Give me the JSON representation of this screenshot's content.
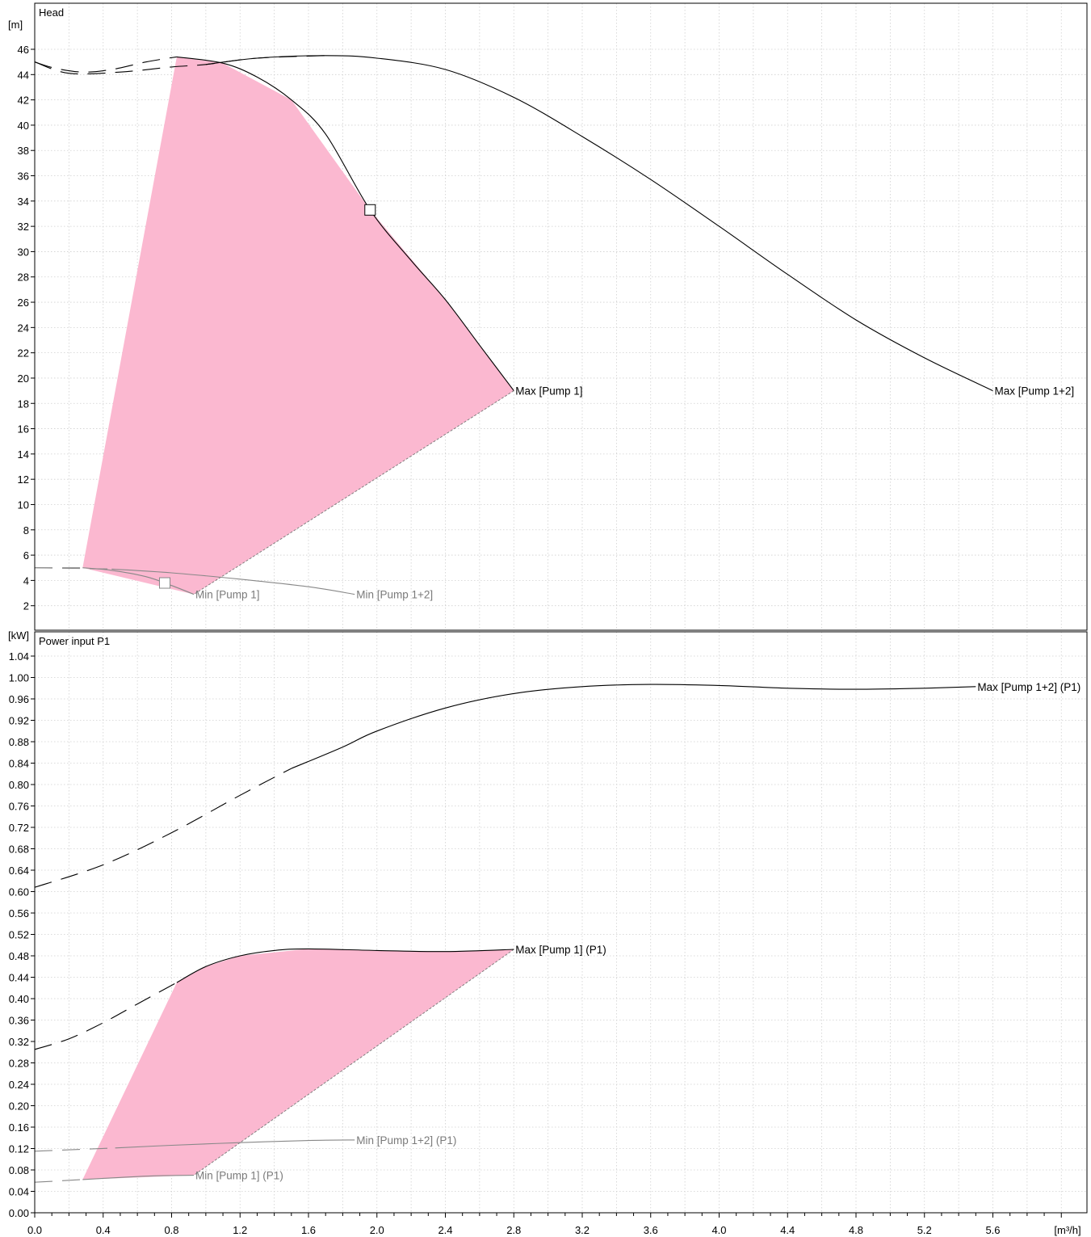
{
  "chart_data": [
    {
      "type": "line",
      "title": "Head",
      "ylabel": "[m]",
      "xlabel": "[m³/h]",
      "xlim": [
        0,
        6.0
      ],
      "ylim": [
        0,
        48
      ],
      "x_ticks": [
        "0.0",
        "0.4",
        "0.8",
        "1.2",
        "1.6",
        "2.0",
        "2.4",
        "2.8",
        "3.2",
        "3.6",
        "4.0",
        "4.4",
        "4.8",
        "5.2",
        "5.6"
      ],
      "y_ticks": [
        "2",
        "4",
        "6",
        "8",
        "10",
        "12",
        "14",
        "16",
        "18",
        "20",
        "22",
        "24",
        "26",
        "28",
        "30",
        "32",
        "34",
        "36",
        "38",
        "40",
        "42",
        "44",
        "46"
      ],
      "grid": true,
      "operating_area_color": "#fbb8d0",
      "operating_area": [
        [
          0.28,
          5.0
        ],
        [
          0.83,
          45.4
        ],
        [
          1.1,
          44.9
        ],
        [
          1.5,
          42.0
        ],
        [
          1.96,
          33.3
        ],
        [
          2.4,
          26.2
        ],
        [
          2.8,
          19.0
        ],
        [
          0.93,
          2.9
        ]
      ],
      "series": [
        {
          "name": "Max [Pump 1]",
          "color": "#000000",
          "dashed": [
            [
              0.0,
              45.0
            ],
            [
              0.12,
              44.5
            ],
            [
              0.28,
              44.2
            ],
            [
              0.45,
              44.4
            ],
            [
              0.65,
              45.0
            ],
            [
              0.83,
              45.4
            ]
          ],
          "solid": [
            [
              0.83,
              45.4
            ],
            [
              1.1,
              44.9
            ],
            [
              1.3,
              43.8
            ],
            [
              1.5,
              42.0
            ],
            [
              1.7,
              39.3
            ],
            [
              1.96,
              33.3
            ],
            [
              2.2,
              29.3
            ],
            [
              2.4,
              26.2
            ],
            [
              2.6,
              22.6
            ],
            [
              2.8,
              19.0
            ]
          ]
        },
        {
          "name": "Max [Pump 1+2]",
          "color": "#000000",
          "dashed": [
            [
              0.0,
              45.0
            ],
            [
              0.2,
              44.1
            ],
            [
              0.5,
              44.2
            ],
            [
              0.8,
              44.6
            ],
            [
              1.0,
              44.8
            ],
            [
              1.3,
              45.3
            ],
            [
              1.7,
              45.5
            ]
          ],
          "solid": [
            [
              1.0,
              44.8
            ],
            [
              1.3,
              45.3
            ],
            [
              1.7,
              45.5
            ],
            [
              2.0,
              45.3
            ],
            [
              2.4,
              44.4
            ],
            [
              2.8,
              42.2
            ],
            [
              3.2,
              39.1
            ],
            [
              3.6,
              35.7
            ],
            [
              4.0,
              32.0
            ],
            [
              4.4,
              28.2
            ],
            [
              4.8,
              24.6
            ],
            [
              5.2,
              21.6
            ],
            [
              5.6,
              19.0
            ]
          ]
        },
        {
          "name": "Min [Pump 1]",
          "color": "#888888",
          "dashed": [
            [
              0.0,
              5.0
            ],
            [
              0.28,
              5.0
            ]
          ],
          "solid": [
            [
              0.28,
              5.0
            ],
            [
              0.45,
              4.8
            ],
            [
              0.65,
              4.3
            ],
            [
              0.8,
              3.6
            ],
            [
              0.93,
              2.9
            ]
          ]
        },
        {
          "name": "Min [Pump 1+2]",
          "color": "#888888",
          "dashed": [
            [
              0.0,
              5.0
            ],
            [
              0.45,
              4.9
            ]
          ],
          "solid": [
            [
              0.45,
              4.9
            ],
            [
              0.8,
              4.6
            ],
            [
              1.2,
              4.1
            ],
            [
              1.6,
              3.5
            ],
            [
              1.87,
              2.9
            ]
          ]
        }
      ],
      "markers": [
        {
          "x": 1.96,
          "y": 33.3,
          "color": "#000000"
        },
        {
          "x": 0.76,
          "y": 3.8,
          "color": "#888888"
        }
      ]
    },
    {
      "type": "line",
      "title": "Power input P1",
      "ylabel": "[kW]",
      "xlabel": "[m³/h]",
      "xlim": [
        0,
        6.0
      ],
      "ylim": [
        0,
        1.08
      ],
      "x_ticks": [
        "0.0",
        "0.4",
        "0.8",
        "1.2",
        "1.6",
        "2.0",
        "2.4",
        "2.8",
        "3.2",
        "3.6",
        "4.0",
        "4.4",
        "4.8",
        "5.2",
        "5.6"
      ],
      "y_ticks": [
        "0.00",
        "0.04",
        "0.08",
        "0.12",
        "0.16",
        "0.20",
        "0.24",
        "0.28",
        "0.32",
        "0.36",
        "0.40",
        "0.44",
        "0.48",
        "0.52",
        "0.56",
        "0.60",
        "0.64",
        "0.68",
        "0.72",
        "0.76",
        "0.80",
        "0.84",
        "0.88",
        "0.92",
        "0.96",
        "1.00",
        "1.04"
      ],
      "grid": true,
      "operating_area_color": "#fbb8d0",
      "operating_area": [
        [
          0.28,
          0.062
        ],
        [
          0.83,
          0.43
        ],
        [
          1.0,
          0.46
        ],
        [
          1.2,
          0.48
        ],
        [
          1.6,
          0.493
        ],
        [
          2.0,
          0.49
        ],
        [
          2.4,
          0.488
        ],
        [
          2.8,
          0.492
        ],
        [
          0.93,
          0.07
        ]
      ],
      "series": [
        {
          "name": "Max [Pump 1] (P1)",
          "color": "#000000",
          "dashed": [
            [
              0.0,
              0.305
            ],
            [
              0.2,
              0.325
            ],
            [
              0.4,
              0.355
            ],
            [
              0.6,
              0.39
            ],
            [
              0.83,
              0.43
            ]
          ],
          "solid": [
            [
              0.83,
              0.43
            ],
            [
              1.0,
              0.46
            ],
            [
              1.2,
              0.48
            ],
            [
              1.4,
              0.49
            ],
            [
              1.6,
              0.493
            ],
            [
              2.0,
              0.49
            ],
            [
              2.4,
              0.488
            ],
            [
              2.8,
              0.492
            ]
          ]
        },
        {
          "name": "Max [Pump 1+2] (P1)",
          "color": "#000000",
          "dashed": [
            [
              0.0,
              0.608
            ],
            [
              0.4,
              0.65
            ],
            [
              0.8,
              0.71
            ],
            [
              1.2,
              0.78
            ],
            [
              1.5,
              0.83
            ]
          ],
          "solid": [
            [
              1.5,
              0.83
            ],
            [
              1.8,
              0.87
            ],
            [
              2.0,
              0.9
            ],
            [
              2.4,
              0.943
            ],
            [
              2.8,
              0.97
            ],
            [
              3.2,
              0.983
            ],
            [
              3.6,
              0.987
            ],
            [
              4.0,
              0.985
            ],
            [
              4.4,
              0.98
            ],
            [
              4.8,
              0.978
            ],
            [
              5.2,
              0.98
            ],
            [
              5.5,
              0.983
            ]
          ]
        },
        {
          "name": "Min [Pump 1] (P1)",
          "color": "#888888",
          "dashed": [
            [
              0.0,
              0.057
            ],
            [
              0.28,
              0.062
            ]
          ],
          "solid": [
            [
              0.28,
              0.062
            ],
            [
              0.5,
              0.066
            ],
            [
              0.7,
              0.069
            ],
            [
              0.93,
              0.07
            ]
          ]
        },
        {
          "name": "Min [Pump 1+2] (P1)",
          "color": "#888888",
          "dashed": [
            [
              0.0,
              0.115
            ],
            [
              0.47,
              0.121
            ]
          ],
          "solid": [
            [
              0.47,
              0.121
            ],
            [
              0.8,
              0.126
            ],
            [
              1.2,
              0.131
            ],
            [
              1.6,
              0.135
            ],
            [
              1.87,
              0.136
            ]
          ]
        }
      ]
    }
  ]
}
